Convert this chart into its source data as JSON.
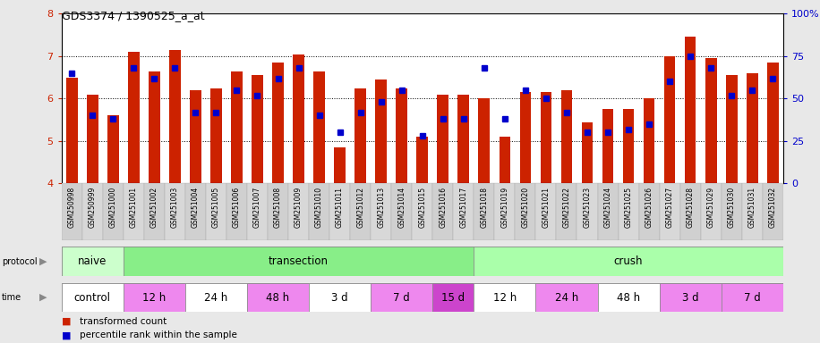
{
  "title": "GDS3374 / 1390525_a_at",
  "samples": [
    "GSM250998",
    "GSM250999",
    "GSM251000",
    "GSM251001",
    "GSM251002",
    "GSM251003",
    "GSM251004",
    "GSM251005",
    "GSM251006",
    "GSM251007",
    "GSM251008",
    "GSM251009",
    "GSM251010",
    "GSM251011",
    "GSM251012",
    "GSM251013",
    "GSM251014",
    "GSM251015",
    "GSM251016",
    "GSM251017",
    "GSM251018",
    "GSM251019",
    "GSM251020",
    "GSM251021",
    "GSM251022",
    "GSM251023",
    "GSM251024",
    "GSM251025",
    "GSM251026",
    "GSM251027",
    "GSM251028",
    "GSM251029",
    "GSM251030",
    "GSM251031",
    "GSM251032"
  ],
  "bar_values": [
    6.5,
    6.1,
    5.6,
    7.1,
    6.65,
    7.15,
    6.2,
    6.25,
    6.65,
    6.55,
    6.85,
    7.05,
    6.65,
    4.85,
    6.25,
    6.45,
    6.25,
    5.1,
    6.1,
    6.1,
    6.0,
    5.1,
    6.15,
    6.15,
    6.2,
    5.45,
    5.75,
    5.75,
    6.0,
    7.0,
    7.45,
    6.95,
    6.55,
    6.6,
    6.85
  ],
  "dot_values": [
    65,
    40,
    38,
    68,
    62,
    68,
    42,
    42,
    55,
    52,
    62,
    68,
    40,
    30,
    42,
    48,
    55,
    28,
    38,
    38,
    68,
    38,
    55,
    50,
    42,
    30,
    30,
    32,
    35,
    60,
    75,
    68,
    52,
    55,
    62
  ],
  "bar_color": "#cc2200",
  "dot_color": "#0000cc",
  "ylim": [
    4,
    8
  ],
  "y2lim": [
    0,
    100
  ],
  "yticks": [
    4,
    5,
    6,
    7,
    8
  ],
  "y2ticks": [
    0,
    25,
    50,
    75,
    100
  ],
  "y2ticklabels": [
    "0",
    "25",
    "50",
    "75",
    "100%"
  ],
  "protocol_groups": [
    {
      "label": "naive",
      "start": 0,
      "end": 3,
      "color": "#ccffcc"
    },
    {
      "label": "transection",
      "start": 3,
      "end": 20,
      "color": "#88ee88"
    },
    {
      "label": "crush",
      "start": 20,
      "end": 35,
      "color": "#aaffaa"
    }
  ],
  "time_groups": [
    {
      "label": "control",
      "start": 0,
      "end": 3,
      "color": "#ffffff"
    },
    {
      "label": "12 h",
      "start": 3,
      "end": 6,
      "color": "#ee88ee"
    },
    {
      "label": "24 h",
      "start": 6,
      "end": 9,
      "color": "#ffffff"
    },
    {
      "label": "48 h",
      "start": 9,
      "end": 12,
      "color": "#ee88ee"
    },
    {
      "label": "3 d",
      "start": 12,
      "end": 15,
      "color": "#ffffff"
    },
    {
      "label": "7 d",
      "start": 15,
      "end": 18,
      "color": "#ee88ee"
    },
    {
      "label": "15 d",
      "start": 18,
      "end": 20,
      "color": "#cc44cc"
    },
    {
      "label": "12 h",
      "start": 20,
      "end": 23,
      "color": "#ffffff"
    },
    {
      "label": "24 h",
      "start": 23,
      "end": 26,
      "color": "#ee88ee"
    },
    {
      "label": "48 h",
      "start": 26,
      "end": 29,
      "color": "#ffffff"
    },
    {
      "label": "3 d",
      "start": 29,
      "end": 32,
      "color": "#ee88ee"
    },
    {
      "label": "7 d",
      "start": 32,
      "end": 35,
      "color": "#ee88ee"
    }
  ],
  "bg_color": "#e8e8e8",
  "plot_bg": "#ffffff",
  "xtick_bg": "#d8d8d8"
}
